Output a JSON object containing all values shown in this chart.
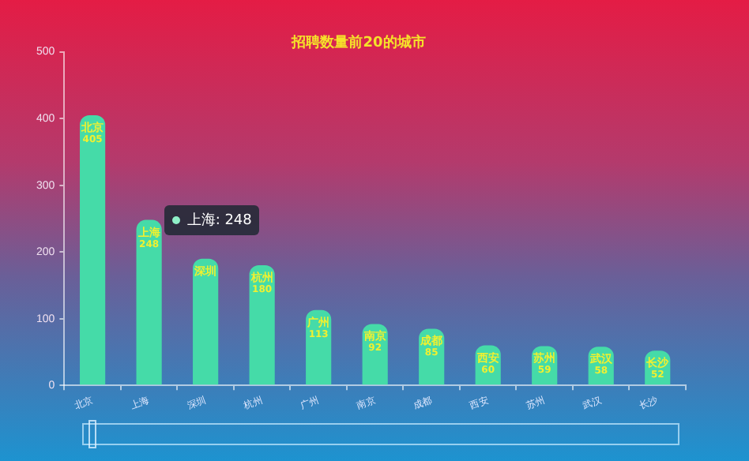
{
  "chart_data": {
    "type": "bar",
    "title": "招聘数量前20的城市",
    "categories": [
      "北京",
      "上海",
      "深圳",
      "杭州",
      "广州",
      "南京",
      "成都",
      "西安",
      "苏州",
      "武汉",
      "长沙"
    ],
    "values": [
      405,
      248,
      190,
      180,
      113,
      92,
      85,
      60,
      59,
      58,
      52
    ],
    "value_labels": [
      "405",
      "248",
      null,
      "180",
      "113",
      "92",
      "85",
      "60",
      "59",
      "58",
      "52"
    ],
    "color": "#45dba8",
    "ylim": [
      0,
      500
    ],
    "yticks": [
      0,
      100,
      200,
      300,
      400,
      500
    ],
    "grid": false,
    "legend": false,
    "annotations": [
      {
        "text": "上海: 248",
        "x": "上海",
        "y": 248
      }
    ]
  }
}
